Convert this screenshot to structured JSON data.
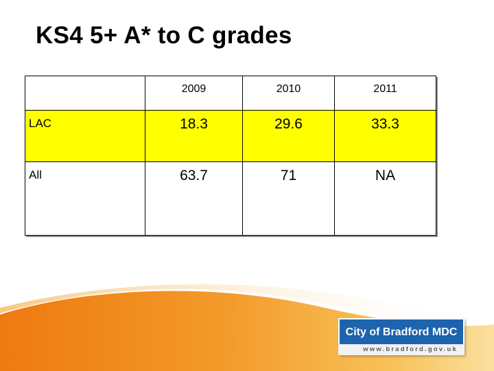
{
  "slide": {
    "title": "KS4 5+ A* to C grades"
  },
  "table": {
    "columns": [
      "",
      "2009",
      "2010",
      "2011"
    ],
    "rows": [
      {
        "label": "LAC",
        "values": [
          "18.3",
          "29.6",
          "33.3"
        ],
        "highlight": "#ffff00"
      },
      {
        "label": "All",
        "values": [
          "63.7",
          "71",
          "NA"
        ]
      }
    ]
  },
  "logo": {
    "name": "City of Bradford MDC",
    "url": "www.bradford.gov.uk",
    "color": "#1d63ad"
  },
  "colors": {
    "swoosh": "#f08a1e",
    "swoosh_light": "#f8c25a"
  }
}
